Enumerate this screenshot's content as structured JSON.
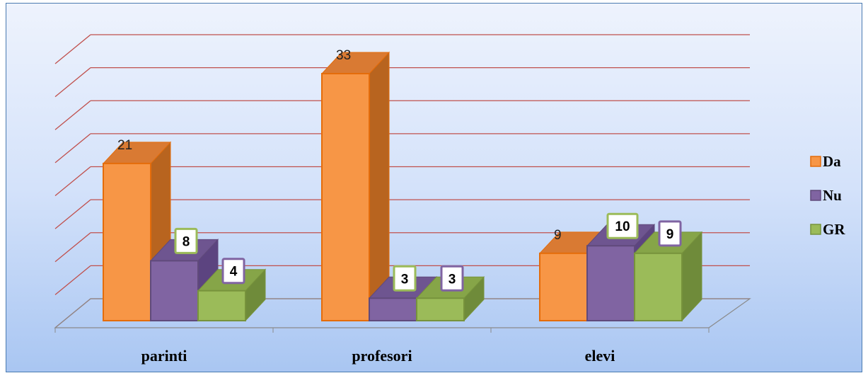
{
  "chart_data": {
    "type": "bar",
    "categories": [
      "parinti",
      "profesori",
      "elevi"
    ],
    "series": [
      {
        "name": "Da",
        "values": [
          21,
          33,
          9
        ]
      },
      {
        "name": "Nu",
        "values": [
          8,
          3,
          10
        ]
      },
      {
        "name": "GR",
        "values": [
          4,
          3,
          9
        ]
      }
    ],
    "ylim": [
      0,
      40
    ],
    "gridlines": [
      0,
      5,
      10,
      15,
      20,
      25,
      30,
      35,
      40
    ],
    "grid": true,
    "legend_position": "right",
    "title": "",
    "xlabel": "",
    "ylabel": ""
  },
  "colors": {
    "Da": {
      "front": "#f79646",
      "side": "#b8641f",
      "top": "#d97a33",
      "border": "#e46c0a"
    },
    "Nu": {
      "front": "#8064a2",
      "side": "#5c4480",
      "top": "#6e5590",
      "border": "#604a7b"
    },
    "GR": {
      "front": "#9bbb59",
      "side": "#6f8b3a",
      "top": "#86a548",
      "border": "#77933c"
    },
    "grid": "#c0504d",
    "box_border": {
      "Nu": "#9bbb59",
      "GR": "#8064a2"
    }
  }
}
